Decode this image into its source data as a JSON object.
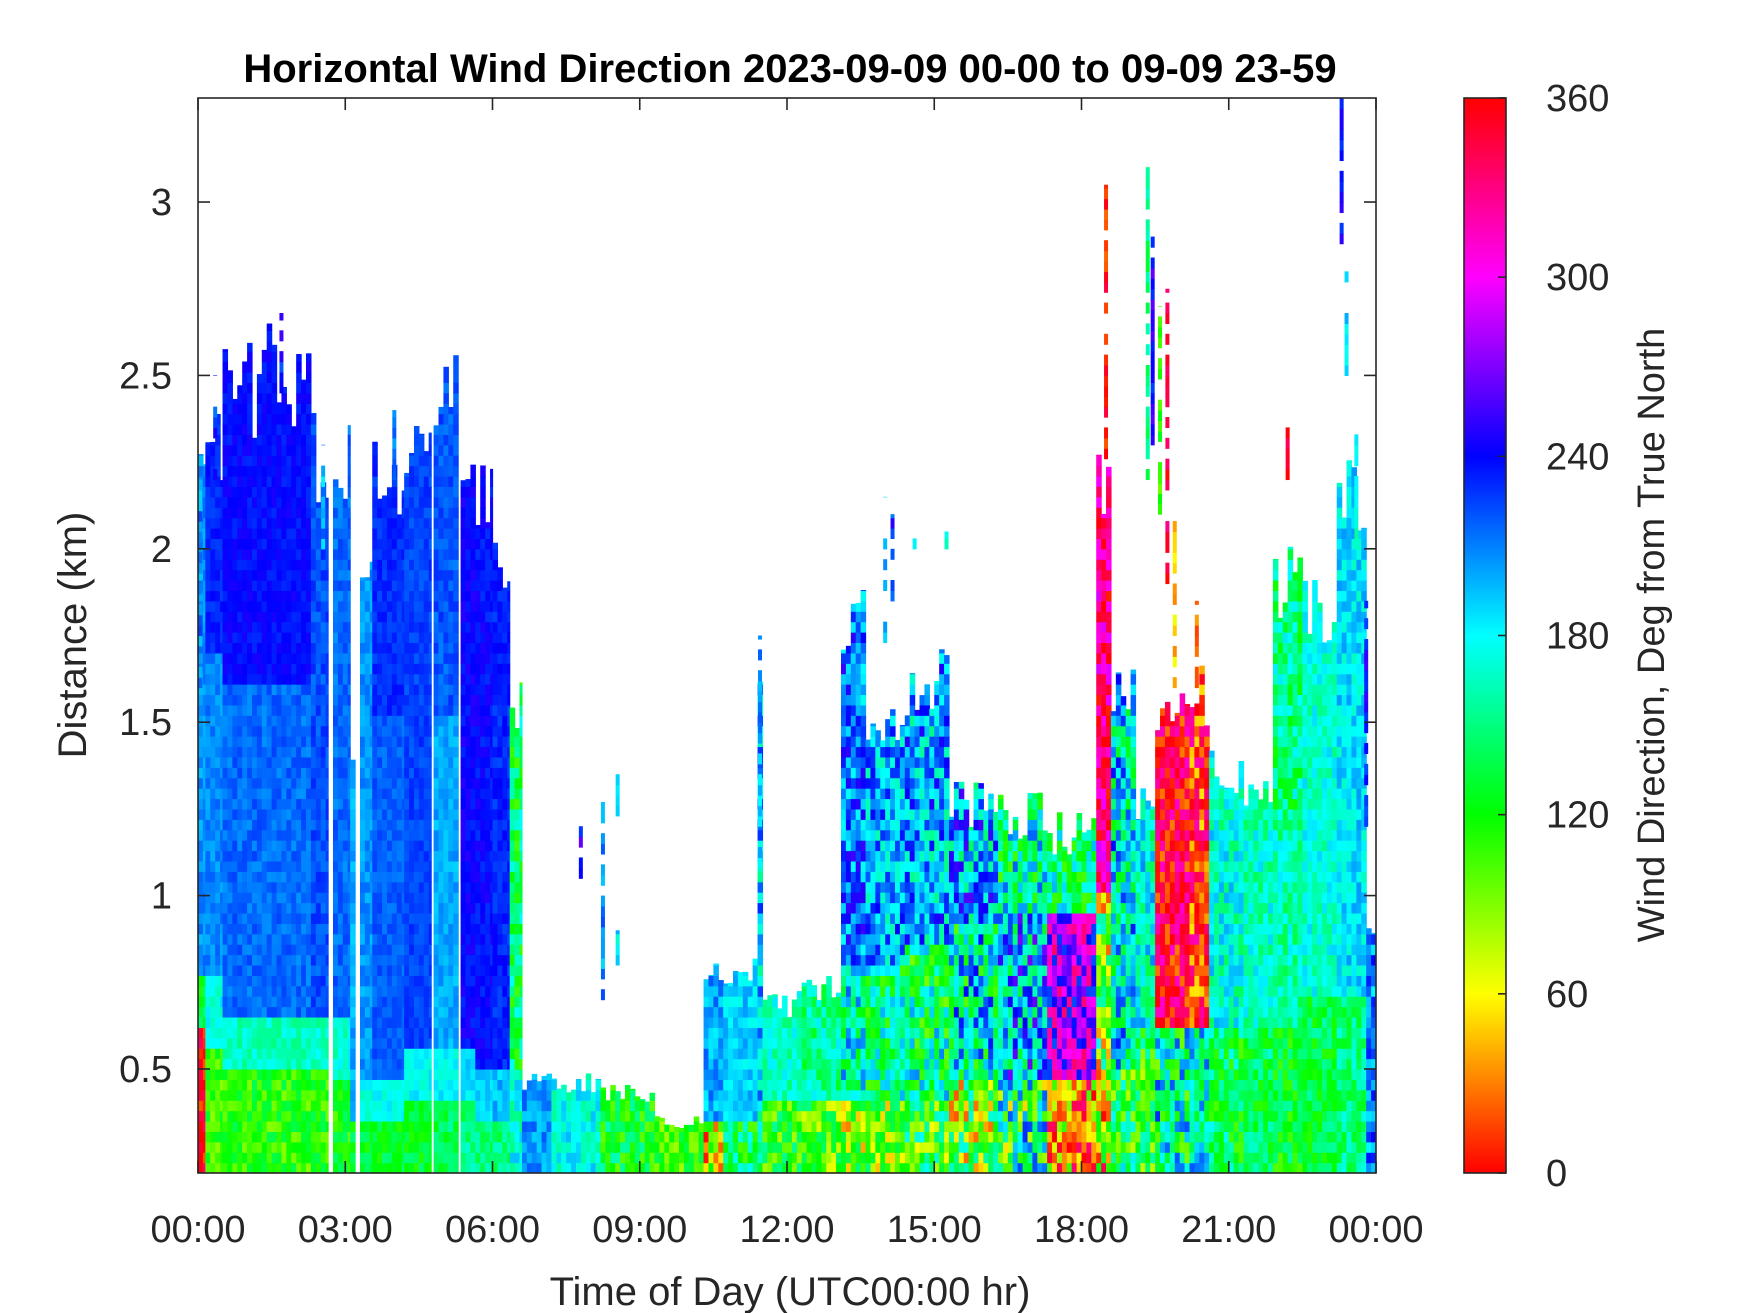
{
  "chart_data": {
    "type": "heatmap",
    "title": "Horizontal Wind Direction 2023-09-09 00-00 to 09-09 23-59",
    "xlabel": "Time of Day (UTC00:00 hr)",
    "ylabel": "Distance (km)",
    "colorbar_label": "Wind Direction, Deg from True North",
    "xlim": [
      0,
      24
    ],
    "ylim": [
      0.2,
      3.3
    ],
    "x_ticks": [
      {
        "value": 0,
        "label": "00:00"
      },
      {
        "value": 3,
        "label": "03:00"
      },
      {
        "value": 6,
        "label": "06:00"
      },
      {
        "value": 9,
        "label": "09:00"
      },
      {
        "value": 12,
        "label": "12:00"
      },
      {
        "value": 15,
        "label": "15:00"
      },
      {
        "value": 18,
        "label": "18:00"
      },
      {
        "value": 21,
        "label": "21:00"
      },
      {
        "value": 24,
        "label": "00:00"
      }
    ],
    "y_ticks": [
      {
        "value": 0.5,
        "label": "0.5"
      },
      {
        "value": 1,
        "label": "1"
      },
      {
        "value": 1.5,
        "label": "1.5"
      },
      {
        "value": 2,
        "label": "2"
      },
      {
        "value": 2.5,
        "label": "2.5"
      },
      {
        "value": 3,
        "label": "3"
      }
    ],
    "colorbar": {
      "range": [
        0,
        360
      ],
      "ticks": [
        {
          "value": 0,
          "label": "0"
        },
        {
          "value": 60,
          "label": "60"
        },
        {
          "value": 120,
          "label": "120"
        },
        {
          "value": 180,
          "label": "180"
        },
        {
          "value": 240,
          "label": "240"
        },
        {
          "value": 300,
          "label": "300"
        },
        {
          "value": 360,
          "label": "360"
        }
      ],
      "colormap": "hsv"
    },
    "grid": false,
    "time_step_hours": 0.1,
    "height_step_km": 0.03,
    "profiles": [
      {
        "t0": 0.0,
        "t1": 0.15,
        "top": 2.2,
        "layers": [
          {
            "to": 0.6,
            "dir": 355,
            "var": 25
          },
          {
            "to": 0.75,
            "dir": 140,
            "var": 30
          },
          {
            "to": 2.2,
            "dir": 205,
            "var": 12
          }
        ]
      },
      {
        "t0": 0.15,
        "t1": 0.5,
        "top": 2.3,
        "layers": [
          {
            "to": 0.55,
            "dir": 110,
            "var": 25
          },
          {
            "to": 0.75,
            "dir": 175,
            "var": 15
          },
          {
            "to": 1.7,
            "dir": 208,
            "var": 10
          },
          {
            "to": 2.3,
            "dir": 232,
            "var": 8
          }
        ]
      },
      {
        "t0": 0.5,
        "t1": 1.3,
        "top": 2.5,
        "layers": [
          {
            "to": 0.5,
            "dir": 115,
            "var": 25
          },
          {
            "to": 0.65,
            "dir": 165,
            "var": 15
          },
          {
            "to": 1.6,
            "dir": 215,
            "var": 10
          },
          {
            "to": 2.5,
            "dir": 238,
            "var": 8
          }
        ]
      },
      {
        "t0": 1.3,
        "t1": 2.3,
        "top": 2.55,
        "layers": [
          {
            "to": 0.5,
            "dir": 112,
            "var": 25
          },
          {
            "to": 0.65,
            "dir": 165,
            "var": 15
          },
          {
            "to": 1.6,
            "dir": 215,
            "var": 10
          },
          {
            "to": 2.55,
            "dir": 238,
            "var": 8
          }
        ]
      },
      {
        "t0": 2.3,
        "t1": 2.65,
        "top": 2.3,
        "layers": [
          {
            "to": 0.5,
            "dir": 115,
            "var": 25
          },
          {
            "to": 0.65,
            "dir": 165,
            "var": 15
          },
          {
            "to": 2.3,
            "dir": 222,
            "var": 10
          }
        ]
      },
      {
        "t0": 2.75,
        "t1": 3.1,
        "top": 2.3,
        "layers": [
          {
            "to": 0.45,
            "dir": 120,
            "var": 25
          },
          {
            "to": 0.65,
            "dir": 170,
            "var": 15
          },
          {
            "to": 2.3,
            "dir": 215,
            "var": 10
          }
        ]
      },
      {
        "t0": 3.1,
        "t1": 3.2,
        "top": 1.5,
        "layers": [
          {
            "to": 0.35,
            "dir": 130,
            "var": 20
          },
          {
            "to": 1.5,
            "dir": 200,
            "var": 10
          }
        ]
      },
      {
        "t0": 3.3,
        "t1": 3.55,
        "top": 2.05,
        "layers": [
          {
            "to": 0.35,
            "dir": 130,
            "var": 20
          },
          {
            "to": 0.45,
            "dir": 175,
            "var": 12
          },
          {
            "to": 2.05,
            "dir": 205,
            "var": 10
          }
        ]
      },
      {
        "t0": 3.55,
        "t1": 4.2,
        "top": 2.25,
        "layers": [
          {
            "to": 0.35,
            "dir": 130,
            "var": 20
          },
          {
            "to": 0.45,
            "dir": 175,
            "var": 12
          },
          {
            "to": 1.5,
            "dir": 218,
            "var": 8
          },
          {
            "to": 2.25,
            "dir": 230,
            "var": 8
          }
        ]
      },
      {
        "t0": 4.2,
        "t1": 4.75,
        "top": 2.4,
        "layers": [
          {
            "to": 0.4,
            "dir": 130,
            "var": 20
          },
          {
            "to": 0.55,
            "dir": 178,
            "var": 12
          },
          {
            "to": 2.4,
            "dir": 225,
            "var": 8
          }
        ]
      },
      {
        "t0": 4.8,
        "t1": 5.3,
        "top": 2.55,
        "layers": [
          {
            "to": 0.4,
            "dir": 140,
            "var": 20
          },
          {
            "to": 0.55,
            "dir": 180,
            "var": 12
          },
          {
            "to": 1.5,
            "dir": 200,
            "var": 10
          },
          {
            "to": 2.55,
            "dir": 220,
            "var": 10
          }
        ]
      },
      {
        "t0": 5.35,
        "t1": 5.65,
        "top": 2.3,
        "layers": [
          {
            "to": 0.4,
            "dir": 150,
            "var": 20
          },
          {
            "to": 0.55,
            "dir": 185,
            "var": 12
          },
          {
            "to": 2.3,
            "dir": 240,
            "var": 10
          }
        ]
      },
      {
        "t0": 5.65,
        "t1": 6.0,
        "top": 2.2,
        "layers": [
          {
            "to": 0.35,
            "dir": 150,
            "var": 20
          },
          {
            "to": 0.5,
            "dir": 190,
            "var": 12
          },
          {
            "to": 2.2,
            "dir": 238,
            "var": 10
          }
        ]
      },
      {
        "t0": 6.0,
        "t1": 6.35,
        "top": 2.0,
        "layers": [
          {
            "to": 0.35,
            "dir": 150,
            "var": 20
          },
          {
            "to": 0.5,
            "dir": 195,
            "var": 12
          },
          {
            "to": 2.0,
            "dir": 232,
            "var": 10
          }
        ]
      },
      {
        "t0": 6.35,
        "t1": 6.6,
        "top": 1.6,
        "layers": [
          {
            "to": 0.5,
            "dir": 170,
            "var": 25
          },
          {
            "to": 1.6,
            "dir": 140,
            "var": 40
          }
        ]
      },
      {
        "t0": 6.6,
        "t1": 7.2,
        "top": 0.47,
        "layers": [
          {
            "to": 0.47,
            "dir": 205,
            "var": 15
          }
        ]
      },
      {
        "t0": 7.2,
        "t1": 8.2,
        "top": 0.47,
        "layers": [
          {
            "to": 0.47,
            "dir": 175,
            "var": 22
          }
        ]
      },
      {
        "t0": 8.2,
        "t1": 9.3,
        "top": 0.44,
        "layers": [
          {
            "to": 0.44,
            "dir": 130,
            "var": 35
          }
        ]
      },
      {
        "t0": 9.3,
        "t1": 10.3,
        "top": 0.35,
        "layers": [
          {
            "to": 0.35,
            "dir": 110,
            "var": 30
          }
        ]
      },
      {
        "t0": 10.3,
        "t1": 10.7,
        "top": 0.8,
        "layers": [
          {
            "to": 0.35,
            "dir": 60,
            "var": 60
          },
          {
            "to": 0.8,
            "dir": 200,
            "var": 20
          }
        ]
      },
      {
        "t0": 10.7,
        "t1": 11.4,
        "top": 0.8,
        "layers": [
          {
            "to": 0.35,
            "dir": 140,
            "var": 40
          },
          {
            "to": 0.8,
            "dir": 190,
            "var": 15
          }
        ]
      },
      {
        "t0": 11.4,
        "t1": 11.5,
        "top": 1.75,
        "layers": [
          {
            "to": 0.4,
            "dir": 150,
            "var": 40
          },
          {
            "to": 1.75,
            "dir": 190,
            "var": 40
          }
        ]
      },
      {
        "t0": 11.5,
        "t1": 12.3,
        "top": 0.7,
        "layers": [
          {
            "to": 0.4,
            "dir": 120,
            "var": 40
          },
          {
            "to": 0.7,
            "dir": 165,
            "var": 20
          }
        ]
      },
      {
        "t0": 12.3,
        "t1": 13.1,
        "top": 0.75,
        "layers": [
          {
            "to": 0.4,
            "dir": 110,
            "var": 45
          },
          {
            "to": 0.75,
            "dir": 155,
            "var": 30
          }
        ]
      },
      {
        "t0": 13.1,
        "t1": 13.6,
        "top": 1.85,
        "layers": [
          {
            "to": 0.4,
            "dir": 90,
            "var": 60
          },
          {
            "to": 0.8,
            "dir": 170,
            "var": 50
          },
          {
            "to": 1.85,
            "dir": 215,
            "var": 40
          }
        ]
      },
      {
        "t0": 13.6,
        "t1": 14.4,
        "top": 1.55,
        "layers": [
          {
            "to": 0.4,
            "dir": 100,
            "var": 60
          },
          {
            "to": 0.8,
            "dir": 150,
            "var": 50
          },
          {
            "to": 1.55,
            "dir": 200,
            "var": 40
          }
        ]
      },
      {
        "t0": 14.4,
        "t1": 15.3,
        "top": 1.65,
        "layers": [
          {
            "to": 0.4,
            "dir": 120,
            "var": 60
          },
          {
            "to": 0.85,
            "dir": 150,
            "var": 60
          },
          {
            "to": 1.65,
            "dir": 200,
            "var": 50
          }
        ]
      },
      {
        "t0": 15.3,
        "t1": 16.3,
        "top": 1.3,
        "layers": [
          {
            "to": 0.45,
            "dir": 100,
            "var": 80
          },
          {
            "to": 0.9,
            "dir": 170,
            "var": 70
          },
          {
            "to": 1.3,
            "dir": 200,
            "var": 60
          }
        ]
      },
      {
        "t0": 16.3,
        "t1": 17.3,
        "top": 1.25,
        "layers": [
          {
            "to": 0.45,
            "dir": 140,
            "var": 90
          },
          {
            "to": 0.95,
            "dir": 200,
            "var": 70
          },
          {
            "to": 1.25,
            "dir": 160,
            "var": 60
          }
        ]
      },
      {
        "t0": 17.3,
        "t1": 18.3,
        "top": 1.2,
        "layers": [
          {
            "to": 0.45,
            "dir": 40,
            "var": 70
          },
          {
            "to": 0.95,
            "dir": 280,
            "var": 60
          },
          {
            "to": 1.2,
            "dir": 150,
            "var": 50
          }
        ]
      },
      {
        "t0": 18.3,
        "t1": 18.6,
        "top": 2.2,
        "layers": [
          {
            "to": 0.5,
            "dir": 60,
            "var": 80
          },
          {
            "to": 1.0,
            "dir": 100,
            "var": 80
          },
          {
            "to": 2.2,
            "dir": 330,
            "var": 40
          }
        ]
      },
      {
        "t0": 18.6,
        "t1": 19.1,
        "top": 1.6,
        "layers": [
          {
            "to": 0.5,
            "dir": 130,
            "var": 60
          },
          {
            "to": 1.6,
            "dir": 180,
            "var": 60
          }
        ]
      },
      {
        "t0": 19.1,
        "t1": 19.5,
        "top": 1.3,
        "layers": [
          {
            "to": 0.6,
            "dir": 120,
            "var": 50
          },
          {
            "to": 1.3,
            "dir": 170,
            "var": 40
          }
        ]
      },
      {
        "t0": 19.5,
        "t1": 20.2,
        "top": 1.55,
        "layers": [
          {
            "to": 0.6,
            "dir": 160,
            "var": 70
          },
          {
            "to": 1.55,
            "dir": 350,
            "var": 40
          }
        ]
      },
      {
        "t0": 20.2,
        "t1": 20.6,
        "top": 1.6,
        "layers": [
          {
            "to": 0.6,
            "dir": 170,
            "var": 50
          },
          {
            "to": 1.6,
            "dir": 5,
            "var": 50
          }
        ]
      },
      {
        "t0": 20.6,
        "t1": 21.3,
        "top": 1.4,
        "layers": [
          {
            "to": 0.6,
            "dir": 140,
            "var": 40
          },
          {
            "to": 1.4,
            "dir": 170,
            "var": 30
          }
        ]
      },
      {
        "t0": 21.3,
        "t1": 21.9,
        "top": 1.3,
        "layers": [
          {
            "to": 0.6,
            "dir": 140,
            "var": 30
          },
          {
            "to": 1.3,
            "dir": 165,
            "var": 25
          }
        ]
      },
      {
        "t0": 21.9,
        "t1": 22.5,
        "top": 1.95,
        "layers": [
          {
            "to": 0.6,
            "dir": 130,
            "var": 30
          },
          {
            "to": 1.2,
            "dir": 160,
            "var": 25
          },
          {
            "to": 1.95,
            "dir": 150,
            "var": 35
          }
        ]
      },
      {
        "t0": 22.5,
        "t1": 23.2,
        "top": 1.85,
        "layers": [
          {
            "to": 0.7,
            "dir": 135,
            "var": 25
          },
          {
            "to": 1.85,
            "dir": 170,
            "var": 20
          }
        ]
      },
      {
        "t0": 23.2,
        "t1": 23.8,
        "top": 2.2,
        "layers": [
          {
            "to": 0.7,
            "dir": 150,
            "var": 25
          },
          {
            "to": 2.2,
            "dir": 185,
            "var": 20
          }
        ]
      },
      {
        "t0": 23.8,
        "t1": 24.0,
        "top": 0.95,
        "layers": [
          {
            "to": 0.95,
            "dir": 210,
            "var": 30
          }
        ]
      }
    ],
    "sparse_columns": [
      {
        "t": 0.05,
        "from": 1.6,
        "to": 2.25,
        "dir": 210
      },
      {
        "t": 0.35,
        "from": 2.2,
        "to": 2.5,
        "dir": 232
      },
      {
        "t": 1.7,
        "from": 2.45,
        "to": 2.68,
        "dir": 238
      },
      {
        "t": 2.55,
        "from": 2.0,
        "to": 2.3,
        "dir": 200
      },
      {
        "t": 4.0,
        "from": 2.2,
        "to": 2.4,
        "dir": 220
      },
      {
        "t": 7.8,
        "from": 1.05,
        "to": 1.2,
        "dir": 245
      },
      {
        "t": 8.25,
        "from": 0.7,
        "to": 1.3,
        "dir": 205
      },
      {
        "t": 8.55,
        "from": 1.2,
        "to": 1.35,
        "dir": 185
      },
      {
        "t": 8.55,
        "from": 0.8,
        "to": 0.9,
        "dir": 180
      },
      {
        "t": 11.45,
        "from": 1.05,
        "to": 1.75,
        "dir": 200
      },
      {
        "t": 11.8,
        "from": 1.1,
        "to": 1.15,
        "dir": 120
      },
      {
        "t": 14.0,
        "from": 1.7,
        "to": 2.15,
        "dir": 200
      },
      {
        "t": 14.15,
        "from": 1.85,
        "to": 2.1,
        "dir": 230
      },
      {
        "t": 14.6,
        "from": 2.0,
        "to": 2.05,
        "dir": 190
      },
      {
        "t": 15.25,
        "from": 2.0,
        "to": 2.05,
        "dir": 170
      },
      {
        "t": 18.5,
        "from": 2.2,
        "to": 3.05,
        "dir": 5
      },
      {
        "t": 19.35,
        "from": 2.2,
        "to": 3.1,
        "dir": 150
      },
      {
        "t": 19.45,
        "from": 2.3,
        "to": 2.9,
        "dir": 245
      },
      {
        "t": 19.6,
        "from": 2.1,
        "to": 2.7,
        "dir": 110
      },
      {
        "t": 19.75,
        "from": 1.9,
        "to": 2.75,
        "dir": 345
      },
      {
        "t": 19.9,
        "from": 1.6,
        "to": 2.1,
        "dir": 50
      },
      {
        "t": 20.35,
        "from": 1.6,
        "to": 1.85,
        "dir": 20
      },
      {
        "t": 22.2,
        "from": 2.2,
        "to": 2.35,
        "dir": 350
      },
      {
        "t": 23.3,
        "from": 2.85,
        "to": 3.3,
        "dir": 240
      },
      {
        "t": 23.4,
        "from": 2.5,
        "to": 2.8,
        "dir": 195
      },
      {
        "t": 23.6,
        "from": 2.0,
        "to": 2.35,
        "dir": 175
      },
      {
        "t": 23.8,
        "from": 1.2,
        "to": 1.85,
        "dir": 235
      }
    ]
  }
}
